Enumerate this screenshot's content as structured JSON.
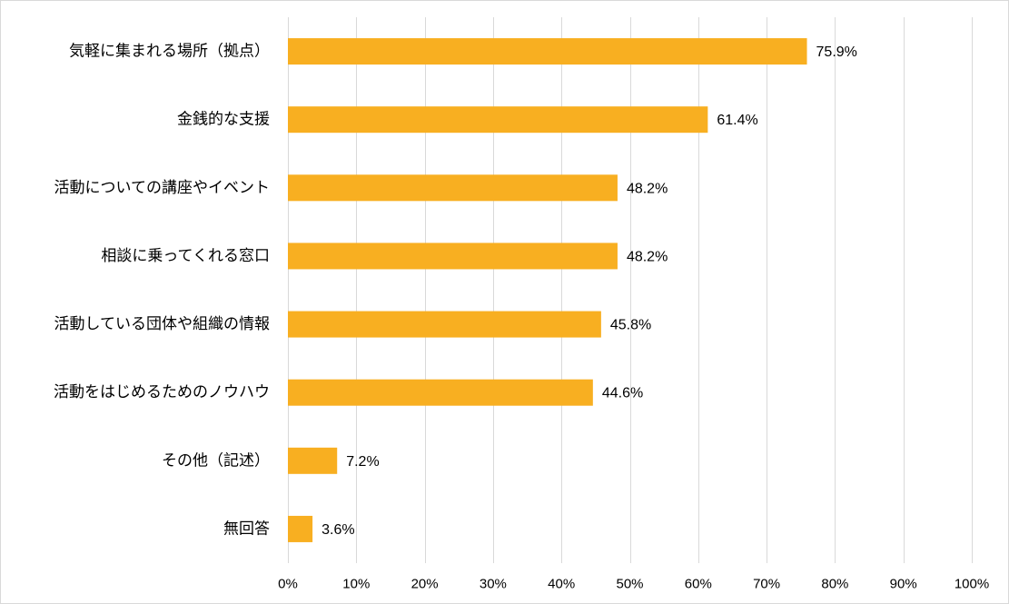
{
  "chart_data": {
    "type": "bar",
    "orientation": "horizontal",
    "categories": [
      "気軽に集まれる場所（拠点）",
      "金銭的な支援",
      "活動についての講座やイベント",
      "相談に乗ってくれる窓口",
      "活動している団体や組織の情報",
      "活動をはじめるためのノウハウ",
      "その他（記述）",
      "無回答"
    ],
    "values": [
      75.9,
      61.4,
      48.2,
      48.2,
      45.8,
      44.6,
      7.2,
      3.6
    ],
    "value_labels": [
      "75.9%",
      "61.4%",
      "48.2%",
      "48.2%",
      "45.8%",
      "44.6%",
      "7.2%",
      "3.6%"
    ],
    "xlim": [
      0,
      100
    ],
    "xticks": [
      0,
      10,
      20,
      30,
      40,
      50,
      60,
      70,
      80,
      90,
      100
    ],
    "xtick_labels": [
      "0%",
      "10%",
      "20%",
      "30%",
      "40%",
      "50%",
      "60%",
      "70%",
      "80%",
      "90%",
      "100%"
    ],
    "grid": true,
    "bar_color": "#F8AF21"
  }
}
